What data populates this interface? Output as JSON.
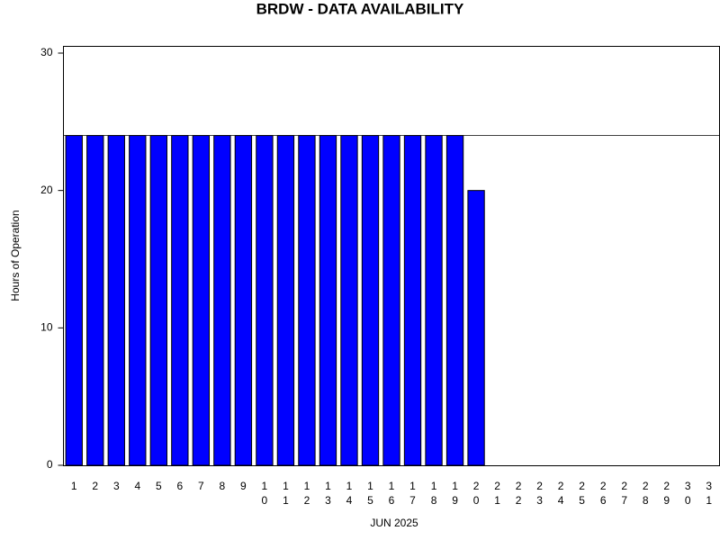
{
  "chart_data": {
    "type": "bar",
    "title": "BRDW - DATA AVAILABILITY",
    "x_label": "JUN 2025",
    "y_label": "Hours of Operation",
    "categories": [
      "1",
      "2",
      "3",
      "4",
      "5",
      "6",
      "7",
      "8",
      "9",
      "10",
      "11",
      "12",
      "13",
      "14",
      "15",
      "16",
      "17",
      "18",
      "19",
      "20",
      "21",
      "22",
      "23",
      "24",
      "25",
      "26",
      "27",
      "28",
      "29",
      "30",
      "31"
    ],
    "values": [
      24,
      24,
      24,
      24,
      24,
      24,
      24,
      24,
      24,
      24,
      24,
      24,
      24,
      24,
      24,
      24,
      24,
      24,
      24,
      20,
      0,
      0,
      0,
      0,
      0,
      0,
      0,
      0,
      0,
      0,
      0
    ],
    "color": "#0000ff",
    "reference_line": 24,
    "ylim": [
      0,
      30
    ],
    "yticks": [
      0,
      10,
      20,
      30
    ],
    "grid": false
  }
}
